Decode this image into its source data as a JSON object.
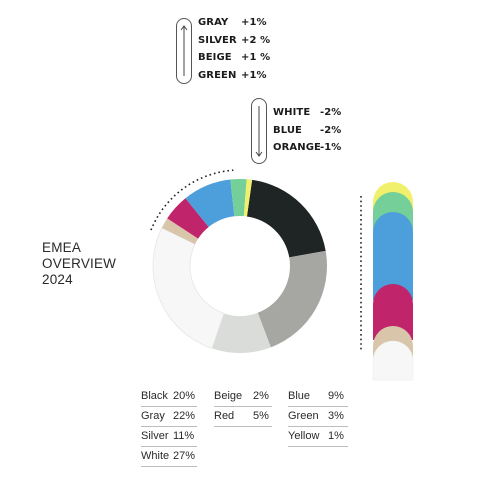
{
  "title": {
    "line1": "EMEA",
    "line2": "OVERVIEW",
    "line3": "2024"
  },
  "trends_up": [
    {
      "name": "GRAY",
      "delta": "+1%"
    },
    {
      "name": "SILVER",
      "delta": "+2 %"
    },
    {
      "name": "BEIGE",
      "delta": "+1 %"
    },
    {
      "name": "GREEN",
      "delta": "+1%"
    }
  ],
  "trends_down": [
    {
      "name": "WHITE",
      "delta": "-2%"
    },
    {
      "name": "BLUE",
      "delta": "-2%"
    },
    {
      "name": "ORANGE",
      "delta": "-1%"
    }
  ],
  "icons": {
    "up": "arrow-up-icon",
    "down": "arrow-down-icon"
  },
  "legend": [
    {
      "name": "Black",
      "value": "20%"
    },
    {
      "name": "Gray",
      "value": "22%"
    },
    {
      "name": "Silver",
      "value": "11%"
    },
    {
      "name": "White",
      "value": "27%"
    },
    {
      "name": "Beige",
      "value": "2%"
    },
    {
      "name": "Red",
      "value": "5%"
    },
    {
      "name": "Blue",
      "value": "9%"
    },
    {
      "name": "Green",
      "value": "3%"
    },
    {
      "name": "Yellow",
      "value": "1%"
    }
  ],
  "chart_data": [
    {
      "type": "pie",
      "variant": "donut",
      "categories": [
        "Black",
        "Gray",
        "Silver",
        "White",
        "Beige",
        "Red",
        "Blue",
        "Green",
        "Yellow"
      ],
      "values": [
        20,
        22,
        11,
        27,
        2,
        5,
        9,
        3,
        1
      ],
      "colors": [
        "#1f2424",
        "#a6a6a2",
        "#dadcda",
        "#f7f7f7",
        "#d8c5aa",
        "#c0246a",
        "#4d9fdc",
        "#74cf99",
        "#f1f06d"
      ]
    },
    {
      "type": "bar",
      "variant": "stacked-vertical",
      "categories": [
        "Yellow",
        "Green",
        "Blue",
        "Red",
        "Beige",
        "White"
      ],
      "colors": [
        "#f1f06d",
        "#74cf99",
        "#4d9fdc",
        "#c0246a",
        "#d8c5aa",
        "#f7f7f7"
      ]
    }
  ]
}
